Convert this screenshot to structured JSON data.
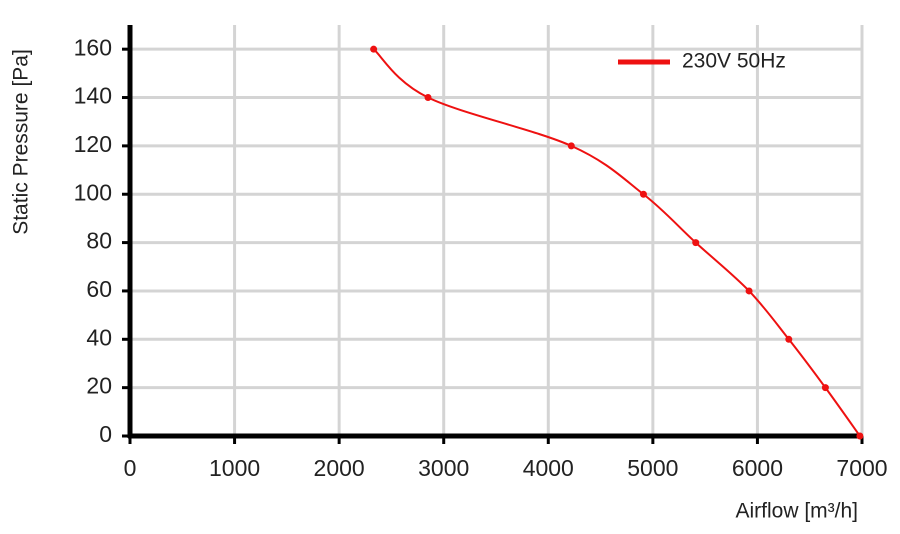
{
  "chart_data": {
    "type": "line",
    "xlabel": "Airflow [m³/h]",
    "ylabel": "Static Pressure [Pa]",
    "series": [
      {
        "name": "230V 50Hz",
        "color": "#ee1111",
        "x": [
          2330,
          2850,
          4220,
          4910,
          5410,
          5920,
          6300,
          6650,
          6980
        ],
        "values": [
          160,
          140,
          120,
          100,
          80,
          60,
          40,
          20,
          0
        ]
      }
    ],
    "xlim": [
      0,
      7000
    ],
    "xticks": [
      0,
      1000,
      2000,
      3000,
      4000,
      5000,
      6000,
      7000
    ],
    "ylim": [
      0,
      170
    ],
    "yticks": [
      0,
      20,
      40,
      60,
      80,
      100,
      120,
      140,
      160
    ],
    "grid": true,
    "legend": "top-right",
    "legend_text_color": "#e0309a"
  }
}
